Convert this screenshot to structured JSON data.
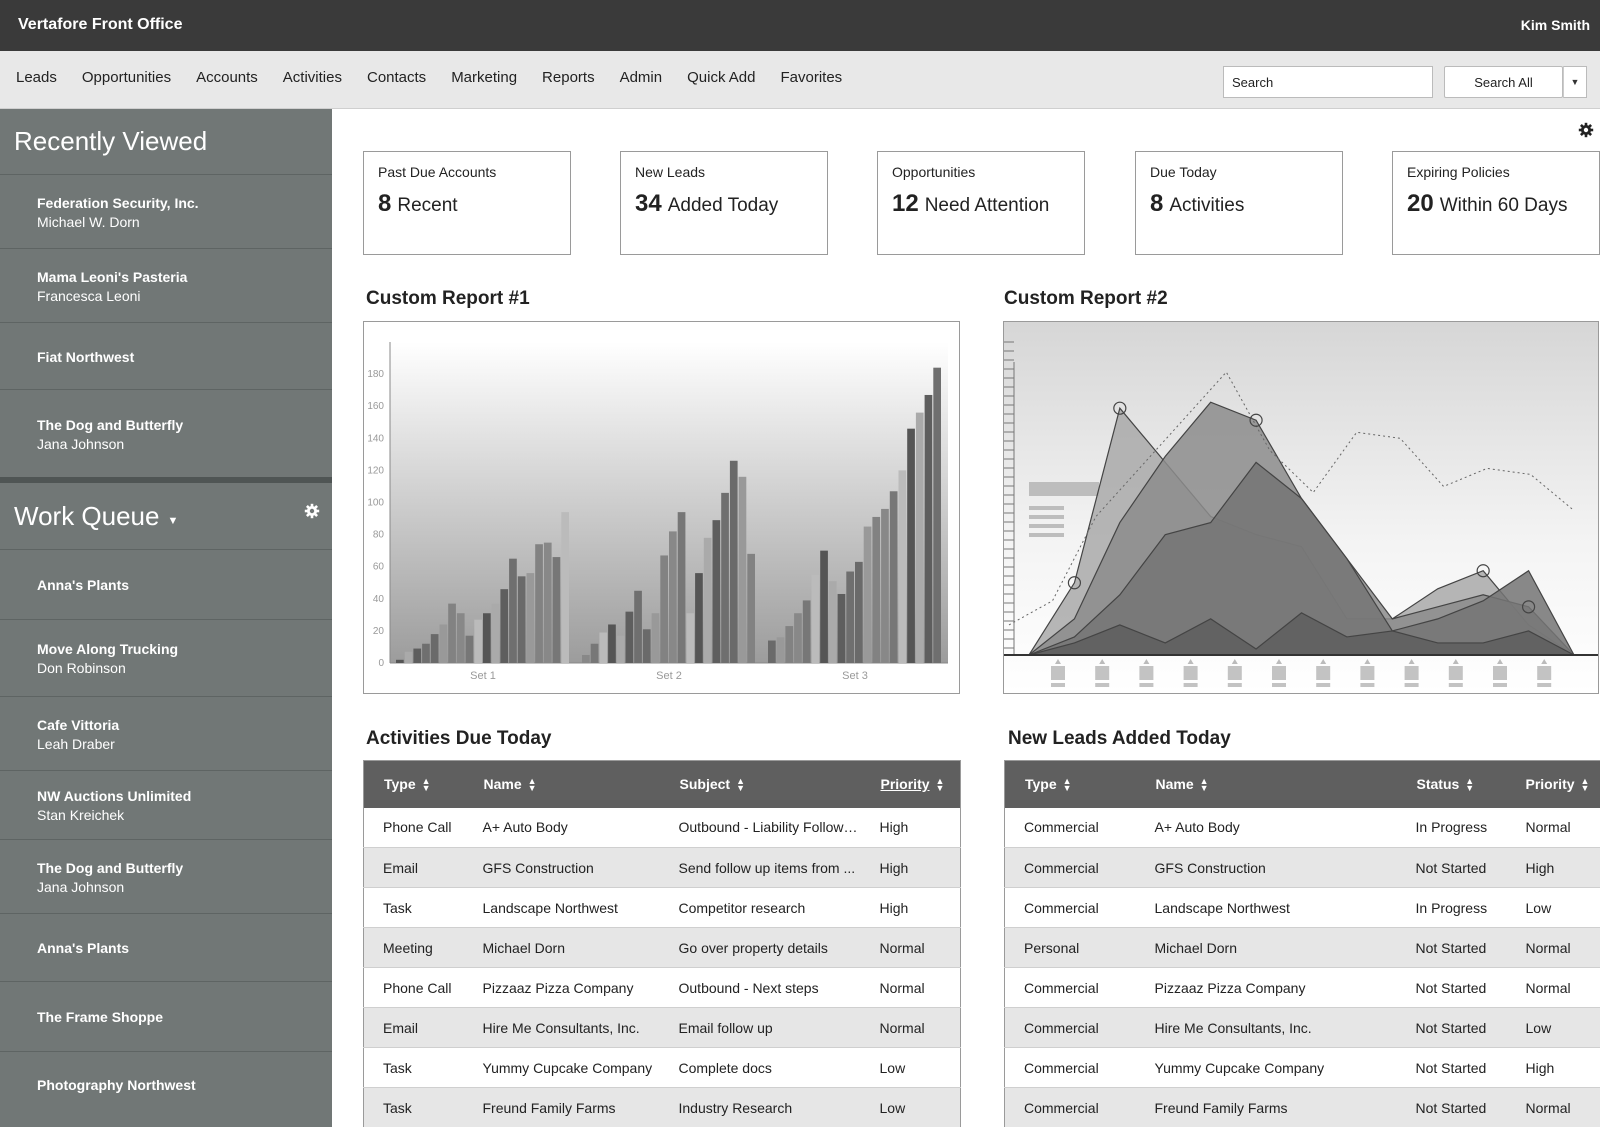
{
  "app": {
    "title": "Vertafore Front Office",
    "user": "Kim Smith"
  },
  "nav": {
    "items": [
      "Leads",
      "Opportunities",
      "Accounts",
      "Activities",
      "Contacts",
      "Marketing",
      "Reports",
      "Admin",
      "Quick Add",
      "Favorites"
    ],
    "search_placeholder": "Search",
    "search_all_label": "Search All"
  },
  "sidebar": {
    "recently_viewed_title": "Recently Viewed",
    "recently_viewed": [
      {
        "name": "Federation Security, Inc.",
        "contact": "Michael W. Dorn"
      },
      {
        "name": "Mama Leoni's Pasteria",
        "contact": "Francesca Leoni"
      },
      {
        "name": "Fiat Northwest",
        "contact": ""
      },
      {
        "name": "The Dog and Butterfly",
        "contact": "Jana Johnson"
      }
    ],
    "work_queue_title": "Work Queue",
    "work_queue": [
      {
        "name": "Anna's Plants",
        "contact": ""
      },
      {
        "name": "Move Along Trucking",
        "contact": "Don Robinson"
      },
      {
        "name": "Cafe Vittoria",
        "contact": "Leah Draber"
      },
      {
        "name": "NW Auctions Unlimited",
        "contact": "Stan Kreichek"
      },
      {
        "name": "The Dog and Butterfly",
        "contact": "Jana Johnson"
      },
      {
        "name": "Anna's Plants",
        "contact": ""
      },
      {
        "name": "The Frame Shoppe",
        "contact": ""
      },
      {
        "name": "Photography Northwest",
        "contact": ""
      }
    ]
  },
  "kpis": [
    {
      "label": "Past Due Accounts",
      "number": "8",
      "text": "Recent"
    },
    {
      "label": "New Leads",
      "number": "34",
      "text": "Added Today"
    },
    {
      "label": "Opportunities",
      "number": "12",
      "text": "Need Attention"
    },
    {
      "label": "Due Today",
      "number": "8",
      "text": "Activities"
    },
    {
      "label": "Expiring Policies",
      "number": "20",
      "text": "Within 60 Days"
    }
  ],
  "report1": {
    "title": "Custom Report #1"
  },
  "report2": {
    "title": "Custom Report #2"
  },
  "chart_data": [
    {
      "type": "bar",
      "categories": [
        "Set 1",
        "Set 2",
        "Set 3"
      ],
      "ylim": [
        0,
        200
      ],
      "yticks": [
        0,
        20,
        40,
        60,
        80,
        100,
        120,
        140,
        160,
        180
      ],
      "groups": [
        [
          2,
          7,
          9,
          12,
          18,
          24,
          37,
          31,
          17,
          27,
          31,
          37,
          46,
          65,
          54,
          56,
          74,
          75,
          66,
          94
        ],
        [
          5,
          12,
          19,
          24,
          17,
          32,
          45,
          21,
          31,
          67,
          82,
          94,
          31,
          56,
          78,
          89,
          106,
          126,
          116,
          68
        ],
        [
          14,
          16,
          23,
          31,
          39,
          55,
          70,
          51,
          43,
          57,
          63,
          85,
          91,
          96,
          107,
          120,
          146,
          156,
          167,
          184
        ]
      ]
    },
    {
      "type": "area",
      "x": [
        1,
        2,
        3,
        4,
        5,
        6,
        7,
        8,
        9,
        10,
        11,
        12,
        13
      ],
      "series": [
        {
          "values": [
            0,
            60,
            205,
            160,
            115,
            100,
            90,
            30,
            30,
            55,
            70,
            25,
            0
          ]
        },
        {
          "values": [
            0,
            30,
            110,
            165,
            210,
            195,
            130,
            80,
            30,
            40,
            50,
            40,
            0
          ]
        },
        {
          "values": [
            0,
            15,
            50,
            100,
            110,
            160,
            130,
            80,
            20,
            30,
            45,
            70,
            0
          ]
        },
        {
          "values": [
            0,
            10,
            25,
            10,
            30,
            5,
            35,
            15,
            20,
            10,
            10,
            20,
            0
          ]
        }
      ],
      "dotted": [
        25,
        45,
        115,
        155,
        195,
        235,
        170,
        135,
        185,
        180,
        140,
        155,
        150,
        120
      ]
    }
  ],
  "activities": {
    "title": "Activities Due Today",
    "columns": [
      "Type",
      "Name",
      "Subject",
      "Priority"
    ],
    "rows": [
      [
        "Phone Call",
        "A+ Auto Body",
        "Outbound - Liability Follow Up",
        "High"
      ],
      [
        "Email",
        "GFS Construction",
        "Send follow up items from ...",
        "High"
      ],
      [
        "Task",
        "Landscape Northwest",
        "Competitor research",
        "High"
      ],
      [
        "Meeting",
        "Michael Dorn",
        "Go over property details",
        "Normal"
      ],
      [
        "Phone Call",
        "Pizzaaz Pizza Company",
        "Outbound - Next steps",
        "Normal"
      ],
      [
        "Email",
        "Hire Me Consultants, Inc.",
        "Email follow up",
        "Normal"
      ],
      [
        "Task",
        "Yummy Cupcake Company",
        "Complete docs",
        "Low"
      ],
      [
        "Task",
        "Freund Family Farms",
        "Industry Research",
        "Low"
      ]
    ]
  },
  "leads": {
    "title": "New Leads Added Today",
    "columns": [
      "Type",
      "Name",
      "Status",
      "Priority"
    ],
    "rows": [
      [
        "Commercial",
        "A+ Auto Body",
        "In Progress",
        "Normal"
      ],
      [
        "Commercial",
        "GFS Construction",
        "Not Started",
        "High"
      ],
      [
        "Commercial",
        "Landscape Northwest",
        "In Progress",
        "Low"
      ],
      [
        "Personal",
        "Michael Dorn",
        "Not Started",
        "Normal"
      ],
      [
        "Commercial",
        "Pizzaaz Pizza Company",
        "Not Started",
        "Normal"
      ],
      [
        "Commercial",
        "Hire Me Consultants, Inc.",
        "Not Started",
        "Low"
      ],
      [
        "Commercial",
        "Yummy Cupcake Company",
        "Not Started",
        "High"
      ],
      [
        "Commercial",
        "Freund Family Farms",
        "Not Started",
        "Normal"
      ]
    ]
  }
}
